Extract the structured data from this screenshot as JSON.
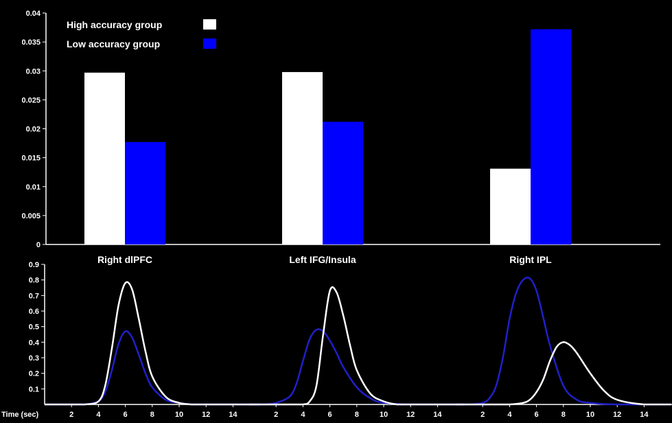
{
  "chart_data": [
    {
      "type": "bar",
      "categories": [
        "Right dlPFC",
        "Left IFG/Insula",
        "Right IPL"
      ],
      "series": [
        {
          "name": "High accuracy group",
          "color": "#ffffff",
          "values": [
            0.0297,
            0.0298,
            0.0131
          ]
        },
        {
          "name": "Low accuracy group",
          "color": "#0000ff",
          "values": [
            0.0177,
            0.0212,
            0.0372
          ]
        }
      ],
      "ylim": [
        0,
        0.04
      ],
      "yticks": [
        "0",
        "0.005",
        "0.01",
        "0.015",
        "0.02",
        "0.025",
        "0.03",
        "0.035",
        "0.04"
      ],
      "legend": "top-left",
      "grid": false
    },
    {
      "type": "line",
      "ylim": [
        0,
        0.9
      ],
      "yticks": [
        "0.1",
        "0.2",
        "0.3",
        "0.4",
        "0.5",
        "0.6",
        "0.7",
        "0.8",
        "0.9"
      ],
      "xlabel": "Time (sec)",
      "xticks": [
        "2",
        "4",
        "6",
        "8",
        "10",
        "12",
        "14"
      ],
      "xlim": [
        0,
        16
      ],
      "panels": [
        {
          "category": "Right dlPFC",
          "series": [
            {
              "name": "High accuracy group",
              "color": "#ffffff",
              "x": [
                0,
                2,
                3,
                4,
                4.5,
                5,
                5.5,
                6,
                6.5,
                7,
                7.5,
                8,
                9,
                10,
                11,
                12,
                14,
                16
              ],
              "y": [
                0,
                0,
                0,
                0.02,
                0.12,
                0.36,
                0.64,
                0.78,
                0.74,
                0.55,
                0.34,
                0.18,
                0.05,
                0.01,
                0,
                0,
                0,
                0
              ]
            },
            {
              "name": "Low accuracy group",
              "color": "#2020c8",
              "x": [
                0,
                2,
                3,
                4,
                4.5,
                5,
                5.5,
                6,
                6.5,
                7,
                7.5,
                8,
                9,
                10,
                11,
                12,
                14,
                16
              ],
              "y": [
                0,
                0,
                0,
                0.02,
                0.08,
                0.22,
                0.39,
                0.47,
                0.43,
                0.32,
                0.2,
                0.11,
                0.03,
                0.01,
                0,
                0,
                0,
                0
              ]
            }
          ]
        },
        {
          "category": "Left IFG/Insula",
          "series": [
            {
              "name": "High accuracy group",
              "color": "#ffffff",
              "x": [
                0,
                2,
                3,
                4,
                4.5,
                5,
                5.5,
                6,
                6.5,
                7,
                7.5,
                8,
                9,
                10,
                11,
                12,
                14,
                16
              ],
              "y": [
                0,
                0,
                0,
                0,
                0.02,
                0.12,
                0.45,
                0.73,
                0.72,
                0.57,
                0.38,
                0.22,
                0.07,
                0.02,
                0,
                0,
                0,
                0
              ]
            },
            {
              "name": "Low accuracy group",
              "color": "#2020c8",
              "x": [
                0,
                1,
                2,
                3,
                3.5,
                4,
                4.5,
                5,
                5.5,
                6,
                6.5,
                7,
                8,
                9,
                10,
                12,
                14,
                16
              ],
              "y": [
                0,
                0,
                0.01,
                0.05,
                0.13,
                0.28,
                0.42,
                0.48,
                0.47,
                0.41,
                0.33,
                0.24,
                0.11,
                0.04,
                0.01,
                0,
                0,
                0
              ]
            }
          ]
        },
        {
          "category": "Right IPL",
          "series": [
            {
              "name": "High accuracy group",
              "color": "#ffffff",
              "x": [
                0,
                2,
                3,
                4,
                5,
                5.5,
                6,
                6.5,
                7,
                7.5,
                8,
                8.5,
                9,
                10,
                11,
                12,
                14,
                16
              ],
              "y": [
                0,
                0,
                0,
                0,
                0.01,
                0.03,
                0.08,
                0.16,
                0.28,
                0.37,
                0.4,
                0.38,
                0.33,
                0.2,
                0.09,
                0.03,
                0,
                0
              ]
            },
            {
              "name": "Low accuracy group",
              "color": "#2020c8",
              "x": [
                0,
                1,
                2,
                2.5,
                3,
                3.5,
                4,
                4.5,
                5,
                5.5,
                6,
                6.5,
                7,
                8,
                9,
                10,
                12,
                16
              ],
              "y": [
                0,
                0,
                0.01,
                0.04,
                0.12,
                0.3,
                0.55,
                0.72,
                0.8,
                0.81,
                0.73,
                0.56,
                0.38,
                0.12,
                0.03,
                0.01,
                0,
                0
              ]
            }
          ]
        }
      ]
    }
  ]
}
